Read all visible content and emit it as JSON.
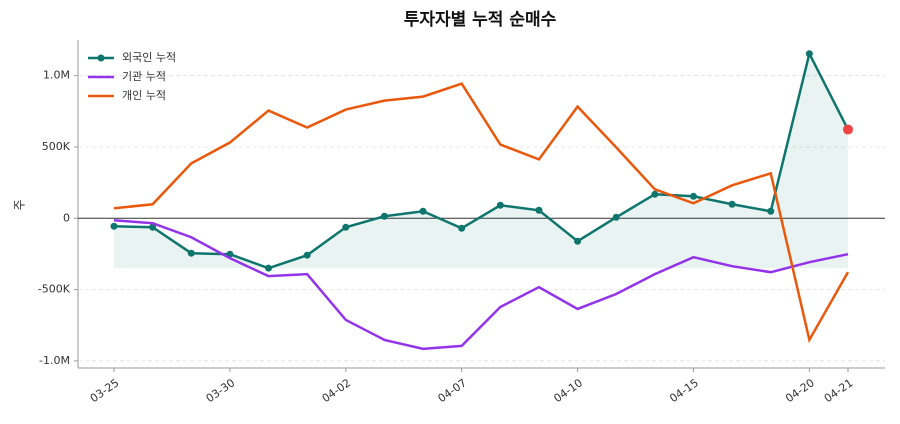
{
  "chart_data": {
    "type": "line",
    "title": "투자자별 누적 순매수",
    "ylabel": "주",
    "categories": [
      "03-25",
      null,
      null,
      "03-30",
      null,
      null,
      "04-02",
      null,
      null,
      "04-07",
      null,
      null,
      "04-10",
      null,
      null,
      "04-15",
      null,
      null,
      "04-20",
      "04-21"
    ],
    "series": [
      {
        "name": "외국인 누적",
        "color": "#0f766e",
        "markers": true,
        "fill": true,
        "values": [
          -56000,
          -63000,
          -245000,
          -252000,
          -350000,
          -259000,
          -63000,
          14000,
          49000,
          -70000,
          91000,
          56000,
          -161000,
          7000,
          168000,
          154000,
          98000,
          49000,
          1154000,
          622000
        ]
      },
      {
        "name": "기관 누적",
        "color": "#9333ea",
        "values": [
          -14000,
          -35000,
          -133000,
          -280000,
          -406000,
          -392000,
          -713000,
          -853000,
          -916000,
          -895000,
          -622000,
          -483000,
          -636000,
          -531000,
          -392000,
          -273000,
          -336000,
          -378000,
          -308000,
          -252000
        ]
      },
      {
        "name": "개인 누적",
        "color": "#ea580c",
        "values": [
          70000,
          98000,
          385000,
          531000,
          755000,
          636000,
          762000,
          825000,
          853000,
          944000,
          517000,
          413000,
          783000,
          497000,
          203000,
          105000,
          231000,
          315000,
          -853000,
          -378000
        ]
      }
    ],
    "highlight_color": "#ef4444",
    "ylim": [
      -1050000,
      1250000
    ],
    "yticks": [
      {
        "value": -1000000,
        "label": "-1.0M"
      },
      {
        "value": -500000,
        "label": "-500K"
      },
      0,
      {
        "value": 500000,
        "label": "500K"
      },
      {
        "value": 1000000,
        "label": "1.0M"
      }
    ],
    "grid": true,
    "legend": "upper-left"
  }
}
